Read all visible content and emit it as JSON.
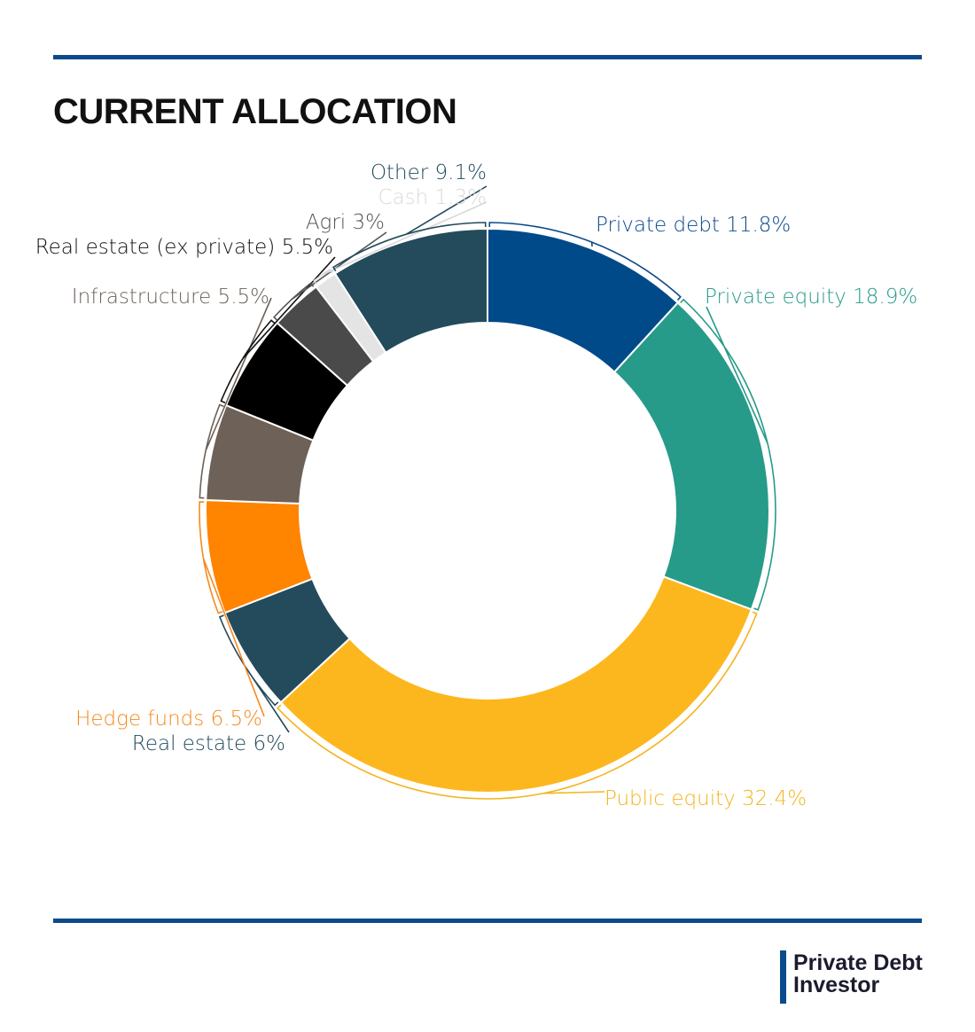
{
  "title": "CURRENT ALLOCATION",
  "brand": {
    "line1": "Private Debt",
    "line2": "Investor",
    "accent": "#0b4a8b"
  },
  "chart_data": {
    "type": "pie",
    "variant": "donut",
    "title": "CURRENT ALLOCATION",
    "series": [
      {
        "name": "Private debt",
        "label": "Private debt 11.8%",
        "value": 11.8,
        "color": "#004a8a",
        "label_color": "#0b4a8b"
      },
      {
        "name": "Private equity",
        "label": "Private equity 18.9%",
        "value": 18.9,
        "color": "#279b89",
        "label_color": "#279b89"
      },
      {
        "name": "Public equity",
        "label": "Public equity 32.4%",
        "value": 32.4,
        "color": "#fdb71e",
        "label_color": "#f4b41d"
      },
      {
        "name": "Real estate",
        "label": "Real estate 6%",
        "value": 6.0,
        "color": "#234b5c",
        "label_color": "#234b5c"
      },
      {
        "name": "Hedge funds",
        "label": "Hedge funds 6.5%",
        "value": 6.5,
        "color": "#ff8400",
        "label_color": "#f7891e"
      },
      {
        "name": "Infrastructure",
        "label": "Infrastructure 5.5%",
        "value": 5.5,
        "color": "#6e6157",
        "label_color": "#6e6157"
      },
      {
        "name": "Real estate (ex private)",
        "label": "Real estate (ex private) 5.5%",
        "value": 5.5,
        "color": "#000000",
        "label_color": "#111111"
      },
      {
        "name": "Agri",
        "label": "Agri 3%",
        "value": 3.0,
        "color": "#4a4a4a",
        "label_color": "#555555"
      },
      {
        "name": "Cash",
        "label": "Cash 1.3%",
        "value": 1.3,
        "color": "#e4e4e4",
        "label_color": "#d9d9d9"
      },
      {
        "name": "Other",
        "label": "Other 9.1%",
        "value": 9.1,
        "color": "#234b5c",
        "label_color": "#234b5c"
      }
    ]
  }
}
